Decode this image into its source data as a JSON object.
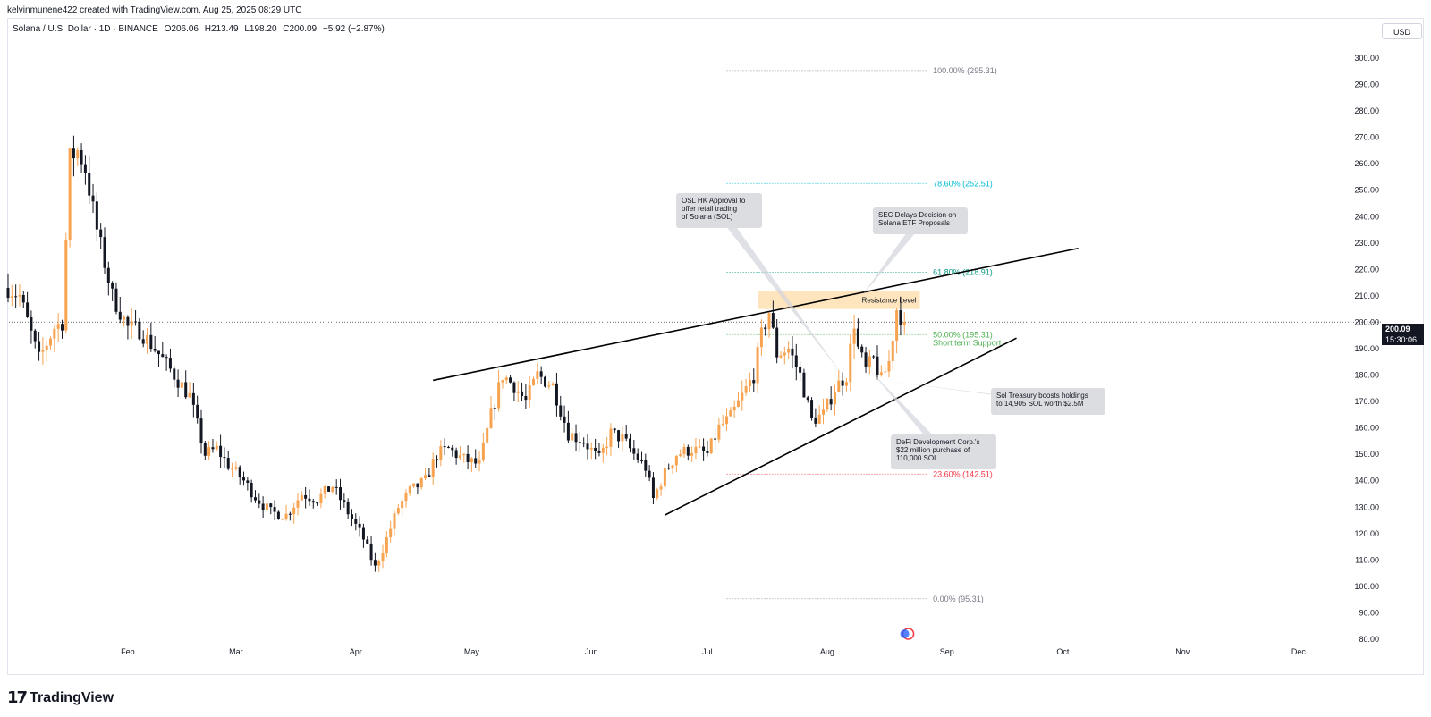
{
  "header": {
    "credit": "kelvinmunene422 created with TradingView.com, Aug 25, 2025 08:29 UTC",
    "symbol": "Solana / U.S. Dollar · 1D · BINANCE",
    "open": "O206.06",
    "high": "H213.49",
    "low": "L198.20",
    "close": "C200.09",
    "change": "−5.92 (−2.87%)"
  },
  "currency_button": "USD",
  "price_tag": {
    "price": "200.09",
    "countdown": "15:30:06"
  },
  "footer": {
    "logo_text": "TradingView"
  },
  "colors": {
    "up": "#f7a350",
    "down": "#131722",
    "fib_100": "#787b86",
    "fib_786": "#00bcd4",
    "fib_618": "#089981",
    "fib_50": "#4caf50",
    "fib_236": "#f23645",
    "fib_0": "#787b86",
    "resistance_zone": "#ffe0b2"
  },
  "chart_data": {
    "type": "candlestick",
    "title": "Solana / U.S. Dollar · 1D · BINANCE",
    "ylim": [
      77,
      313
    ],
    "y_ticks": [
      80,
      90,
      100,
      110,
      120,
      130,
      140,
      150,
      160,
      170,
      180,
      190,
      200,
      210,
      220,
      230,
      240,
      250,
      260,
      270,
      280,
      290,
      300
    ],
    "y_tick_labels": [
      "80.00",
      "90.00",
      "100.00",
      "110.00",
      "120.00",
      "130.00",
      "140.00",
      "150.00",
      "160.00",
      "170.00",
      "180.00",
      "190.00",
      "200.00",
      "210.00",
      "220.00",
      "230.00",
      "240.00",
      "250.00",
      "260.00",
      "270.00",
      "280.00",
      "290.00",
      "300.00"
    ],
    "x_range": [
      "2025-01-01",
      "2026-01-01"
    ],
    "x_ticks": [
      {
        "label": "Feb",
        "day": 31
      },
      {
        "label": "Mar",
        "day": 59
      },
      {
        "label": "Apr",
        "day": 90
      },
      {
        "label": "May",
        "day": 120
      },
      {
        "label": "Jun",
        "day": 151
      },
      {
        "label": "Jul",
        "day": 181
      },
      {
        "label": "Aug",
        "day": 212
      },
      {
        "label": "Sep",
        "day": 243
      },
      {
        "label": "Oct",
        "day": 273
      },
      {
        "label": "Nov",
        "day": 304
      },
      {
        "label": "Dec",
        "day": 334
      }
    ],
    "anchors": [
      {
        "day": 0,
        "price": 213
      },
      {
        "day": 3,
        "price": 210
      },
      {
        "day": 8,
        "price": 186
      },
      {
        "day": 12,
        "price": 198
      },
      {
        "day": 14,
        "price": 200
      },
      {
        "day": 16,
        "price": 262
      },
      {
        "day": 18,
        "price": 265
      },
      {
        "day": 20,
        "price": 258
      },
      {
        "day": 23,
        "price": 235
      },
      {
        "day": 27,
        "price": 210
      },
      {
        "day": 31,
        "price": 198
      },
      {
        "day": 34,
        "price": 197
      },
      {
        "day": 38,
        "price": 190
      },
      {
        "day": 43,
        "price": 180
      },
      {
        "day": 47,
        "price": 172
      },
      {
        "day": 51,
        "price": 150
      },
      {
        "day": 54,
        "price": 152
      },
      {
        "day": 57,
        "price": 146
      },
      {
        "day": 61,
        "price": 140
      },
      {
        "day": 64,
        "price": 134
      },
      {
        "day": 68,
        "price": 128
      },
      {
        "day": 72,
        "price": 127
      },
      {
        "day": 76,
        "price": 135
      },
      {
        "day": 80,
        "price": 133
      },
      {
        "day": 84,
        "price": 138
      },
      {
        "day": 88,
        "price": 128
      },
      {
        "day": 92,
        "price": 118
      },
      {
        "day": 95,
        "price": 107
      },
      {
        "day": 98,
        "price": 118
      },
      {
        "day": 101,
        "price": 130
      },
      {
        "day": 104,
        "price": 136
      },
      {
        "day": 108,
        "price": 140
      },
      {
        "day": 111,
        "price": 150
      },
      {
        "day": 114,
        "price": 152
      },
      {
        "day": 118,
        "price": 148
      },
      {
        "day": 122,
        "price": 146
      },
      {
        "day": 125,
        "price": 165
      },
      {
        "day": 128,
        "price": 180
      },
      {
        "day": 131,
        "price": 176
      },
      {
        "day": 134,
        "price": 170
      },
      {
        "day": 137,
        "price": 180
      },
      {
        "day": 141,
        "price": 176
      },
      {
        "day": 145,
        "price": 158
      },
      {
        "day": 149,
        "price": 155
      },
      {
        "day": 153,
        "price": 148
      },
      {
        "day": 156,
        "price": 158
      },
      {
        "day": 159,
        "price": 156
      },
      {
        "day": 162,
        "price": 150
      },
      {
        "day": 165,
        "price": 145
      },
      {
        "day": 167,
        "price": 133
      },
      {
        "day": 170,
        "price": 143
      },
      {
        "day": 173,
        "price": 150
      },
      {
        "day": 177,
        "price": 152
      },
      {
        "day": 181,
        "price": 150
      },
      {
        "day": 184,
        "price": 160
      },
      {
        "day": 187,
        "price": 164
      },
      {
        "day": 190,
        "price": 172
      },
      {
        "day": 193,
        "price": 180
      },
      {
        "day": 195,
        "price": 195
      },
      {
        "day": 197,
        "price": 204
      },
      {
        "day": 199,
        "price": 188
      },
      {
        "day": 202,
        "price": 190
      },
      {
        "day": 205,
        "price": 180
      },
      {
        "day": 208,
        "price": 163
      },
      {
        "day": 211,
        "price": 165
      },
      {
        "day": 214,
        "price": 175
      },
      {
        "day": 217,
        "price": 180
      },
      {
        "day": 219,
        "price": 200
      },
      {
        "day": 220,
        "price": 190
      },
      {
        "day": 222,
        "price": 182
      },
      {
        "day": 224,
        "price": 186
      },
      {
        "day": 226,
        "price": 178
      },
      {
        "day": 228,
        "price": 185
      },
      {
        "day": 230,
        "price": 205
      },
      {
        "day": 232,
        "price": 200
      }
    ],
    "fibonacci": [
      {
        "label": "100.00% (295.31)",
        "price": 295.31
      },
      {
        "label": "78.60% (252.51)",
        "price": 252.51
      },
      {
        "label": "61.80% (218.91)",
        "price": 218.91
      },
      {
        "label": "50.00% (195.31)",
        "price": 195.31
      },
      {
        "label": "23.60% (142.51)",
        "price": 142.51
      },
      {
        "label": "0.00% (95.31)",
        "price": 95.31
      }
    ],
    "resistance_zone": {
      "label": "Resistance Level",
      "low": 205,
      "high": 212,
      "day_start": 194,
      "day_end": 236
    },
    "support_label": "Short term Support",
    "trendlines": [
      {
        "name": "upper",
        "start": {
          "day": 110,
          "price": 178
        },
        "end": {
          "day": 277,
          "price": 228
        }
      },
      {
        "name": "lower",
        "start": {
          "day": 170,
          "price": 127
        },
        "end": {
          "day": 261,
          "price": 194
        }
      }
    ],
    "annotations": [
      {
        "lines": [
          "OSL HK Approval to",
          "offer retail trading",
          "of Solana (SOL)"
        ],
        "pointer": {
          "day": 216,
          "price": 180
        }
      },
      {
        "lines": [
          "SEC Delays Decision on",
          "Solana ETF Proposals"
        ],
        "pointer": {
          "day": 221,
          "price": 210
        }
      },
      {
        "lines": [
          "Sol Treasury boosts holdings",
          "to 14,905 SOL worth $2.5M"
        ],
        "pointer": {
          "day": 226,
          "price": 178
        }
      },
      {
        "lines": [
          "DeFi Development Corp.'s",
          "$22 million purchase of",
          "110,000 SOL"
        ],
        "pointer": {
          "day": 223,
          "price": 182
        }
      }
    ],
    "last_price": 200.09
  }
}
